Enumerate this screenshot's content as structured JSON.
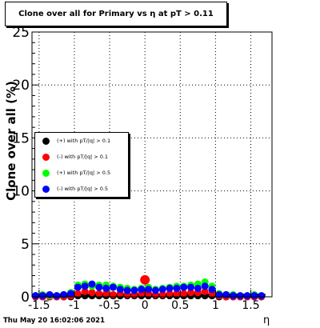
{
  "chart_data": {
    "type": "scatter",
    "title": "Clone  over all for Primary vs  η at pT > 0.11",
    "xlabel": "η",
    "ylabel": "Clone  over all (%)",
    "xlim": [
      -1.6,
      1.8
    ],
    "ylim": [
      0,
      25
    ],
    "x_ticks": [
      "-1.5",
      "-1",
      "-0.5",
      "0",
      "0.5",
      "1",
      "1.5"
    ],
    "x_tick_values": [
      -1.5,
      -1,
      -0.5,
      0,
      0.5,
      1,
      1.5
    ],
    "y_ticks": [
      "0",
      "5",
      "10",
      "15",
      "20",
      "25"
    ],
    "y_tick_values": [
      0,
      5,
      10,
      15,
      20,
      25
    ],
    "grid": true,
    "legend_position": "left-middle",
    "series": [
      {
        "name": "(+) with pT/|q| > 0.1",
        "color": "#000000",
        "x": [
          -1.55,
          -1.45,
          -1.35,
          -1.25,
          -1.15,
          -1.05,
          -0.95,
          -0.85,
          -0.75,
          -0.65,
          -0.55,
          -0.45,
          -0.35,
          -0.25,
          -0.15,
          -0.05,
          0.05,
          0.15,
          0.25,
          0.35,
          0.45,
          0.55,
          0.65,
          0.75,
          0.85,
          0.95,
          1.05,
          1.15,
          1.25,
          1.35,
          1.45,
          1.55,
          1.65
        ],
        "y": [
          0,
          0,
          0,
          0,
          0,
          0,
          0.1,
          0.1,
          0.1,
          0.1,
          0.1,
          0.1,
          0.1,
          0.1,
          0.1,
          0.1,
          0.1,
          0.1,
          0.1,
          0.1,
          0.1,
          0.1,
          0.1,
          0.1,
          0.1,
          0.1,
          0,
          0,
          0,
          0,
          0,
          0,
          0
        ]
      },
      {
        "name": "(-) with pT/|q| > 0.1",
        "color": "#ff0000",
        "x": [
          -1.55,
          -1.45,
          -1.35,
          -1.25,
          -1.15,
          -1.05,
          -0.95,
          -0.85,
          -0.75,
          -0.65,
          -0.55,
          -0.45,
          -0.35,
          -0.25,
          -0.15,
          -0.05,
          0.0,
          0.05,
          0.15,
          0.25,
          0.35,
          0.45,
          0.55,
          0.65,
          0.75,
          0.85,
          0.95,
          1.05,
          1.15,
          1.25,
          1.35,
          1.45,
          1.55,
          1.65
        ],
        "y": [
          0,
          0,
          0,
          0,
          0,
          0.1,
          0.3,
          0.5,
          0.4,
          0.3,
          0.3,
          0.2,
          0.3,
          0.2,
          0.2,
          0.3,
          1.6,
          0.3,
          0.2,
          0.2,
          0.3,
          0.3,
          0.3,
          0.4,
          0.4,
          0.5,
          0.3,
          0.1,
          0,
          0,
          0,
          0,
          0,
          0
        ]
      },
      {
        "name": "(+) with pT/|q| > 0.5",
        "color": "#00ff00",
        "x": [
          -1.55,
          -1.45,
          -1.35,
          -1.25,
          -1.15,
          -1.05,
          -0.95,
          -0.85,
          -0.75,
          -0.65,
          -0.55,
          -0.45,
          -0.35,
          -0.25,
          -0.15,
          -0.05,
          0.05,
          0.15,
          0.25,
          0.35,
          0.45,
          0.55,
          0.65,
          0.75,
          0.85,
          0.95,
          1.05,
          1.15,
          1.25,
          1.35,
          1.45,
          1.55,
          1.65
        ],
        "y": [
          0.1,
          0.2,
          0.1,
          0.1,
          0.2,
          0.4,
          1.1,
          1.2,
          1.0,
          1.1,
          1.1,
          1.0,
          0.9,
          0.8,
          0.7,
          0.8,
          0.9,
          0.7,
          0.8,
          0.9,
          1.0,
          1.0,
          1.1,
          1.2,
          1.4,
          1.0,
          0.3,
          0.2,
          0.2,
          0.1,
          0.1,
          0.2,
          0.1
        ]
      },
      {
        "name": "(-) with pT/|q| > 0.5",
        "color": "#0000ff",
        "x": [
          -1.55,
          -1.45,
          -1.35,
          -1.25,
          -1.15,
          -1.05,
          -0.95,
          -0.85,
          -0.75,
          -0.65,
          -0.55,
          -0.45,
          -0.35,
          -0.25,
          -0.15,
          -0.05,
          0.05,
          0.15,
          0.25,
          0.35,
          0.45,
          0.55,
          0.65,
          0.75,
          0.85,
          0.95,
          1.05,
          1.15,
          1.25,
          1.35,
          1.45,
          1.55,
          1.65
        ],
        "y": [
          0.1,
          0.1,
          0.2,
          0.1,
          0.2,
          0.3,
          0.9,
          1.0,
          1.2,
          0.9,
          0.8,
          0.9,
          0.7,
          0.6,
          0.6,
          0.7,
          0.7,
          0.6,
          0.7,
          0.8,
          0.8,
          0.9,
          0.9,
          0.8,
          1.0,
          0.7,
          0.2,
          0.2,
          0.1,
          0.1,
          0.1,
          0.1,
          0.1
        ]
      }
    ]
  },
  "footer": {
    "date": "Thu May 20 16:02:06 2021"
  }
}
